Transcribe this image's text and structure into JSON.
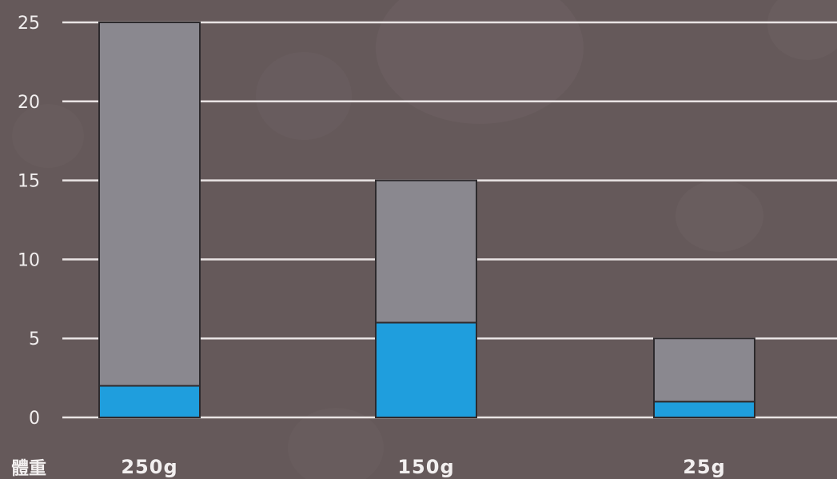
{
  "chart_data": {
    "type": "bar",
    "stacked": true,
    "xlabel": "體重",
    "ylabel": "",
    "title": "",
    "categories": [
      "250g",
      "150g",
      "25g"
    ],
    "series": [
      {
        "color": "#1f9edd",
        "values": [
          2,
          6,
          1
        ]
      },
      {
        "color": "#8a888f",
        "values": [
          23,
          9,
          4
        ]
      }
    ],
    "ylim": [
      0,
      25
    ],
    "yticks": [
      0,
      5,
      10,
      15,
      20,
      25
    ],
    "grid": true,
    "colors": {
      "background": "#65595a",
      "gridline": "#e9e4e4",
      "text": "#f2efef",
      "bar_outline": "#2d2a2d"
    }
  }
}
